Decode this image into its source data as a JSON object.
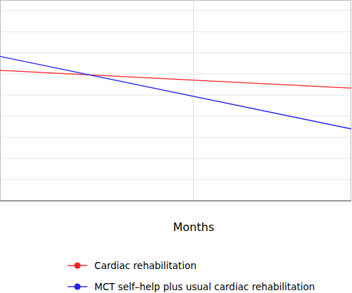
{
  "chart_data": {
    "type": "line",
    "x_label": "Months",
    "x": [
      0,
      10
    ],
    "series": [
      {
        "name": "Cardiac rehabilitation",
        "color": "#ff2020",
        "marker": "circle",
        "values": [
          6.17,
          5.33
        ]
      },
      {
        "name": "MCT self–help plus usual cardiac rehabilitation",
        "color": "#2222ee",
        "marker": "circle",
        "values": [
          6.83,
          3.4
        ]
      }
    ],
    "xlim": [
      0,
      10
    ],
    "xticks": [
      5.5
    ],
    "ylim": [
      0,
      9.5
    ],
    "yticks": [
      1,
      2,
      3,
      4,
      5,
      6,
      7,
      8,
      9
    ],
    "grid": true,
    "tick_labels": false,
    "legend": "bottom"
  }
}
